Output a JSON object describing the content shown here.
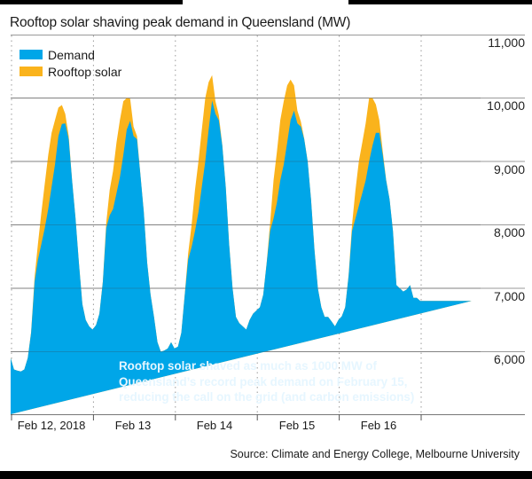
{
  "chart_data": {
    "type": "area",
    "stacked": true,
    "title": "Rooftop solar shaving peak demand in Queensland (MW)",
    "xlabel": "",
    "ylabel": "MW",
    "ylim": [
      5000,
      11000
    ],
    "yticks": [
      11000,
      10000,
      9000,
      8000,
      7000,
      6000
    ],
    "ytick_labels": [
      "11,000",
      "10,000",
      "9,000",
      "8,000",
      "7,000",
      "6,000"
    ],
    "xticks": [
      "Feb 12, 2018",
      "Feb 13",
      "Feb 14",
      "Feb 15",
      "Feb 16"
    ],
    "x_unit": "hours since Feb 12, 2018 00:00",
    "grid": {
      "horizontal": true,
      "vertical_dotted": true
    },
    "legend": {
      "position": "top-left",
      "entries": [
        "Demand",
        "Rooftop solar"
      ]
    },
    "colors": {
      "demand": "#00a6e8",
      "solar": "#fab31c"
    },
    "x": [
      0,
      1,
      2,
      3,
      4,
      5,
      6,
      7,
      8,
      9,
      10,
      11,
      12,
      13,
      14,
      15,
      16,
      17,
      18,
      19,
      20,
      21,
      22,
      23,
      24,
      25,
      26,
      27,
      28,
      29,
      30,
      31,
      32,
      33,
      34,
      35,
      36,
      37,
      38,
      39,
      40,
      41,
      42,
      43,
      44,
      45,
      46,
      47,
      48,
      49,
      50,
      51,
      52,
      53,
      54,
      55,
      56,
      57,
      58,
      59,
      60,
      61,
      62,
      63,
      64,
      65,
      66,
      67,
      68,
      69,
      70,
      71,
      72,
      73,
      74,
      75,
      76,
      77,
      78,
      79,
      80,
      81,
      82,
      83,
      84,
      85,
      86,
      87,
      88,
      89,
      90,
      91,
      92,
      93,
      94,
      95,
      96,
      97,
      98,
      99,
      100,
      101,
      102,
      103,
      104,
      105,
      106,
      107,
      108,
      109,
      110,
      111,
      112,
      113,
      114,
      115,
      116,
      117,
      118,
      119,
      120,
      121,
      122,
      123,
      124,
      125,
      126,
      127,
      128,
      129,
      130,
      131,
      132,
      133,
      134,
      135,
      136,
      137
    ],
    "series": [
      {
        "name": "Demand",
        "values": [
          5900,
          5720,
          5700,
          5690,
          5720,
          5900,
          6300,
          7100,
          7450,
          7700,
          7950,
          8250,
          8600,
          8950,
          9400,
          9590,
          9600,
          9350,
          8700,
          8100,
          7400,
          6750,
          6500,
          6400,
          6350,
          6420,
          6600,
          7100,
          7950,
          8150,
          8250,
          8500,
          8750,
          9100,
          9500,
          9640,
          9400,
          9350,
          8800,
          8200,
          7400,
          6900,
          6550,
          6150,
          6000,
          6020,
          6050,
          6150,
          6050,
          6080,
          6300,
          6900,
          7450,
          7650,
          7900,
          8200,
          8600,
          9000,
          9500,
          9960,
          9750,
          9650,
          9250,
          8600,
          7700,
          7000,
          6550,
          6450,
          6400,
          6350,
          6500,
          6600,
          6650,
          6700,
          6900,
          7400,
          7900,
          8100,
          8350,
          8700,
          8950,
          9300,
          9650,
          9800,
          9600,
          9550,
          9350,
          9000,
          8400,
          7600,
          7000,
          6700,
          6550,
          6550,
          6480,
          6400,
          6500,
          6560,
          6700,
          7200,
          7900,
          8100,
          8300,
          8500,
          8700,
          9000,
          9250,
          9450,
          9450,
          9100,
          8700,
          8400,
          7900,
          7050,
          7000,
          6950,
          6980,
          7050,
          6850,
          6850,
          6800,
          6800,
          6800,
          6800,
          6800,
          6800,
          6800,
          6800,
          6800,
          6800,
          6800,
          6800,
          6800,
          6800,
          6800,
          6800
        ]
      },
      {
        "name": "Rooftop solar",
        "values": [
          0,
          0,
          0,
          0,
          0,
          0,
          10,
          70,
          250,
          500,
          700,
          850,
          850,
          700,
          450,
          300,
          150,
          50,
          0,
          0,
          0,
          0,
          0,
          0,
          0,
          0,
          0,
          10,
          80,
          400,
          600,
          800,
          900,
          850,
          500,
          350,
          150,
          50,
          0,
          0,
          0,
          0,
          0,
          0,
          0,
          0,
          0,
          0,
          0,
          0,
          0,
          10,
          100,
          350,
          650,
          800,
          900,
          1000,
          750,
          400,
          200,
          80,
          10,
          0,
          0,
          0,
          0,
          0,
          0,
          0,
          0,
          0,
          0,
          0,
          0,
          10,
          120,
          600,
          800,
          950,
          1000,
          900,
          640,
          400,
          200,
          80,
          10,
          0,
          0,
          0,
          0,
          0,
          0,
          0,
          0,
          0,
          0,
          0,
          0,
          10,
          100,
          450,
          700,
          800,
          900,
          1000,
          750,
          450,
          200,
          60,
          10,
          0,
          0,
          0,
          0,
          0,
          0,
          0,
          0,
          0,
          0,
          0,
          0,
          0,
          0,
          0,
          0,
          0,
          0,
          0,
          0,
          0,
          0,
          0
        ]
      }
    ],
    "annotation": "Rooftop solar shaved as much as 1000 MW of Queensland’s record peak demand on February 15, reducing the call on the grid (and carbon emissions)",
    "source": "Source: Climate and Energy College, Melbourne University",
    "x_end_hour": 137
  }
}
